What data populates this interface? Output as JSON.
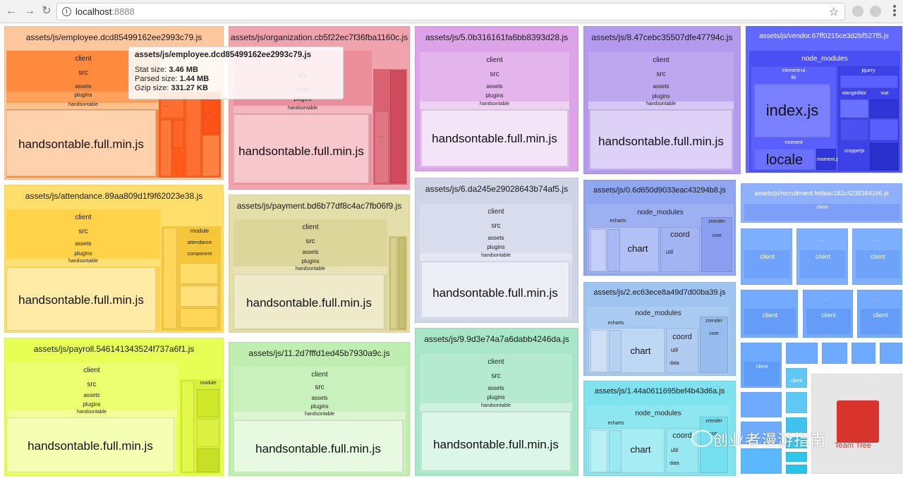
{
  "browser": {
    "url_host": "localhost",
    "url_port": ":8888"
  },
  "tooltip": {
    "title": "assets/js/employee.dcd85499162ee2993c79.js",
    "stat_label": "Stat size:",
    "stat_value": "3.46 MB",
    "parsed_label": "Parsed size:",
    "parsed_value": "1.44 MB",
    "gzip_label": "Gzip size:",
    "gzip_value": "331.27 KB"
  },
  "chunks": {
    "employee": "assets/js/employee.dcd85499162ee2993c79.js",
    "organization": "assets/js/organization.cb5f22ec7f36fba1160c.js",
    "c5": "assets/js/5.0b316161fa6bb8393d28.js",
    "c8": "assets/js/8.47cebc35507dfe47794c.js",
    "vendor": "assets/js/vendor.67ff0215ce3d2bf527f5.js",
    "attendance": "assets/js/attendance.89aa809d1f9f62023e38.js",
    "payment": "assets/js/payment.bd6b77df8c4ac7fb06f9.js",
    "c6": "assets/js/6.da245e29028643b74af5.js",
    "c0": "assets/js/0.6d650d9033eac43294b8.js",
    "recruitment": "assets/js/recruitment.fedaac182c4238384166.js",
    "c2": "assets/js/2.ec63ece8a49d7d00ba39.js",
    "payroll": "assets/js/payroll.546141343524f737a6f1.js",
    "c11": "assets/js/11.2d7fffd1ed45b7930a9c.js",
    "c9": "assets/js/9.9d3e74a7a6dabb4246da.js",
    "c1": "assets/js/1.44a0611695bef4b43d6a.js"
  },
  "labels": {
    "client": "client",
    "src": "src",
    "assets": "assets",
    "plugins": "plugins",
    "handsontable": "handsontable",
    "handsontable_full": "handsontable.full.min.js",
    "node_modules": "node_modules",
    "index_js": "index.js",
    "locale": "locale",
    "moment": "moment",
    "moment_js": "moment.js",
    "jquery": "jquery",
    "wangeditor": "wangeditor",
    "vue": "vue",
    "cropperjs": "cropperjs",
    "element_ui": "element-ui",
    "lib": "lib",
    "echarts": "echarts",
    "chart": "chart",
    "coord": "coord",
    "util": "util",
    "zrender": "zrender",
    "core": "core",
    "module": "module",
    "attendance": "attendance",
    "component": "component",
    "data": "data",
    "ellipsis": "..."
  },
  "watermark": {
    "text": "创业者漫游指南",
    "sub": "Team Tree"
  },
  "colors": {
    "employee": "#ffb88a",
    "employee_deep": "#ff5a1a",
    "organization": "#f0a3ad",
    "c5": "#dda3e8",
    "c8": "#b39aee",
    "vendor": "#5b63ff",
    "attendance": "#ffdf6b",
    "payment": "#e8e3b0",
    "c6": "#cfd4e6",
    "c0": "#8fa6f0",
    "recruitment": "#8fb0ff",
    "c2": "#9fc4f0",
    "payroll": "#e7ff55",
    "c11": "#bfeeb0",
    "c9": "#a8e6c8",
    "c1": "#7fe2ef"
  }
}
